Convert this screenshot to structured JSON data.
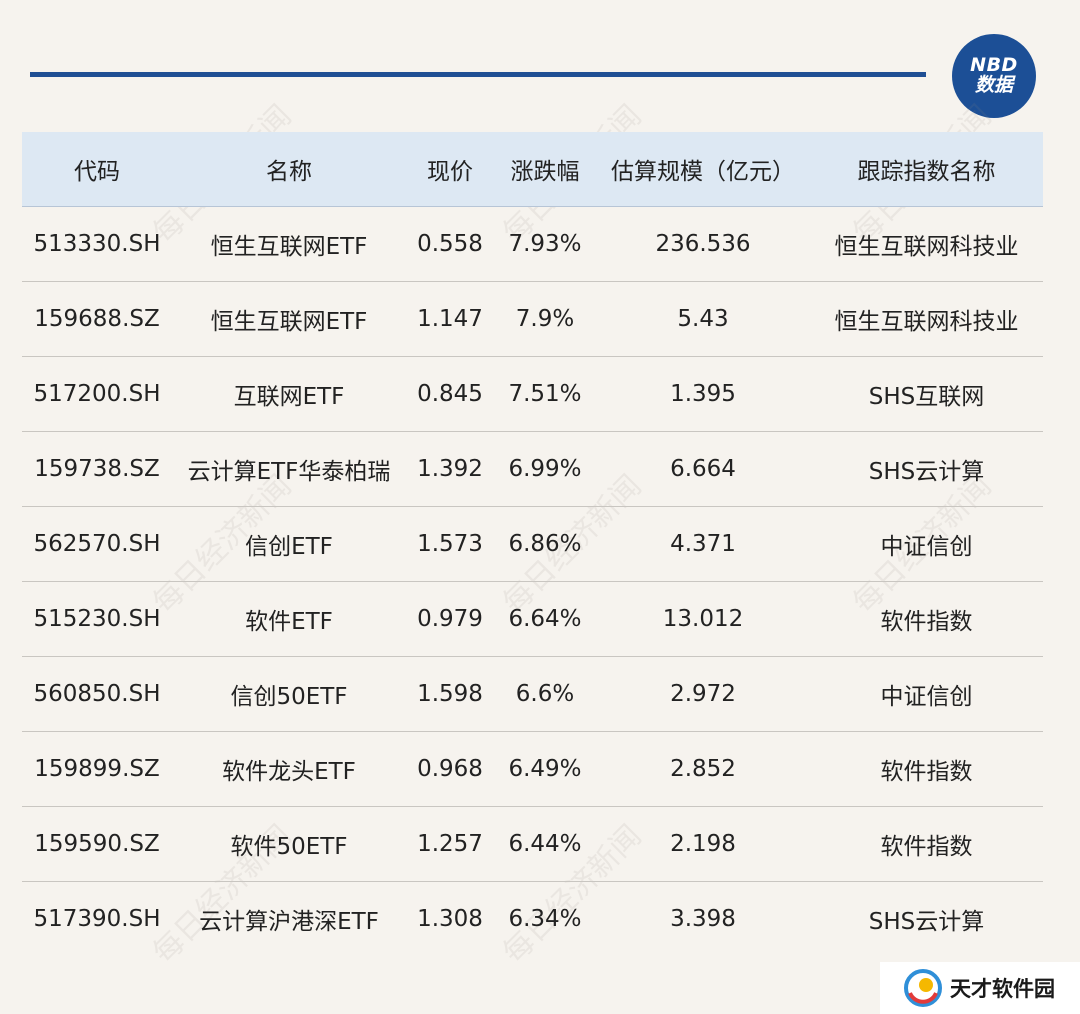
{
  "logo": {
    "line1": "NBD",
    "line2": "数据"
  },
  "watermark_text": "每日经济新闻",
  "table": {
    "headers": [
      "代码",
      "名称",
      "现价",
      "涨跌幅",
      "估算规模（亿元）",
      "跟踪指数名称"
    ],
    "rows": [
      [
        "513330.SH",
        "恒生互联网ETF",
        "0.558",
        "7.93%",
        "236.536",
        "恒生互联网科技业"
      ],
      [
        "159688.SZ",
        "恒生互联网ETF",
        "1.147",
        "7.9%",
        "5.43",
        "恒生互联网科技业"
      ],
      [
        "517200.SH",
        "互联网ETF",
        "0.845",
        "7.51%",
        "1.395",
        "SHS互联网"
      ],
      [
        "159738.SZ",
        "云计算ETF华泰柏瑞",
        "1.392",
        "6.99%",
        "6.664",
        "SHS云计算"
      ],
      [
        "562570.SH",
        "信创ETF",
        "1.573",
        "6.86%",
        "4.371",
        "中证信创"
      ],
      [
        "515230.SH",
        "软件ETF",
        "0.979",
        "6.64%",
        "13.012",
        "软件指数"
      ],
      [
        "560850.SH",
        "信创50ETF",
        "1.598",
        "6.6%",
        "2.972",
        "中证信创"
      ],
      [
        "159899.SZ",
        "软件龙头ETF",
        "0.968",
        "6.49%",
        "2.852",
        "软件指数"
      ],
      [
        "159590.SZ",
        "软件50ETF",
        "1.257",
        "6.44%",
        "2.198",
        "软件指数"
      ],
      [
        "517390.SH",
        "云计算沪港深ETF",
        "1.308",
        "6.34%",
        "3.398",
        "SHS云计算"
      ]
    ]
  },
  "brand": {
    "name": "天才软件园"
  },
  "colors": {
    "background": "#f6f3ee",
    "header_bg": "#dde8f3",
    "rule_blue": "#1f4f94",
    "logo_blue": "#1c4f96"
  }
}
